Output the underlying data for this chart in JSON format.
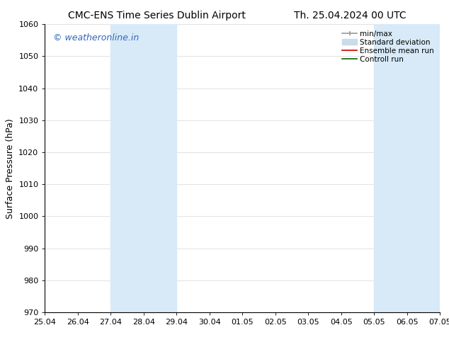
{
  "title_left": "CMC-ENS Time Series Dublin Airport",
  "title_right": "Th. 25.04.2024 00 UTC",
  "ylabel": "Surface Pressure (hPa)",
  "ylim": [
    970,
    1060
  ],
  "yticks": [
    970,
    980,
    990,
    1000,
    1010,
    1020,
    1030,
    1040,
    1050,
    1060
  ],
  "xtick_labels": [
    "25.04",
    "26.04",
    "27.04",
    "28.04",
    "29.04",
    "30.04",
    "01.05",
    "02.05",
    "03.05",
    "04.05",
    "05.05",
    "06.05",
    "07.05"
  ],
  "shaded_regions": [
    {
      "xstart": 2,
      "xend": 4,
      "color": "#d8eaf7"
    },
    {
      "xstart": 10,
      "xend": 12,
      "color": "#d8eaf7"
    }
  ],
  "watermark": "© weatheronline.in",
  "watermark_color": "#3366bb",
  "legend_items": [
    {
      "label": "min/max",
      "color": "#999999"
    },
    {
      "label": "Standard deviation",
      "color": "#c8dcea"
    },
    {
      "label": "Ensemble mean run",
      "color": "#cc0000"
    },
    {
      "label": "Controll run",
      "color": "#006600"
    }
  ],
  "bg_color": "#ffffff",
  "title_fontsize": 10,
  "tick_fontsize": 8,
  "ylabel_fontsize": 9,
  "watermark_fontsize": 9,
  "legend_fontsize": 7.5
}
